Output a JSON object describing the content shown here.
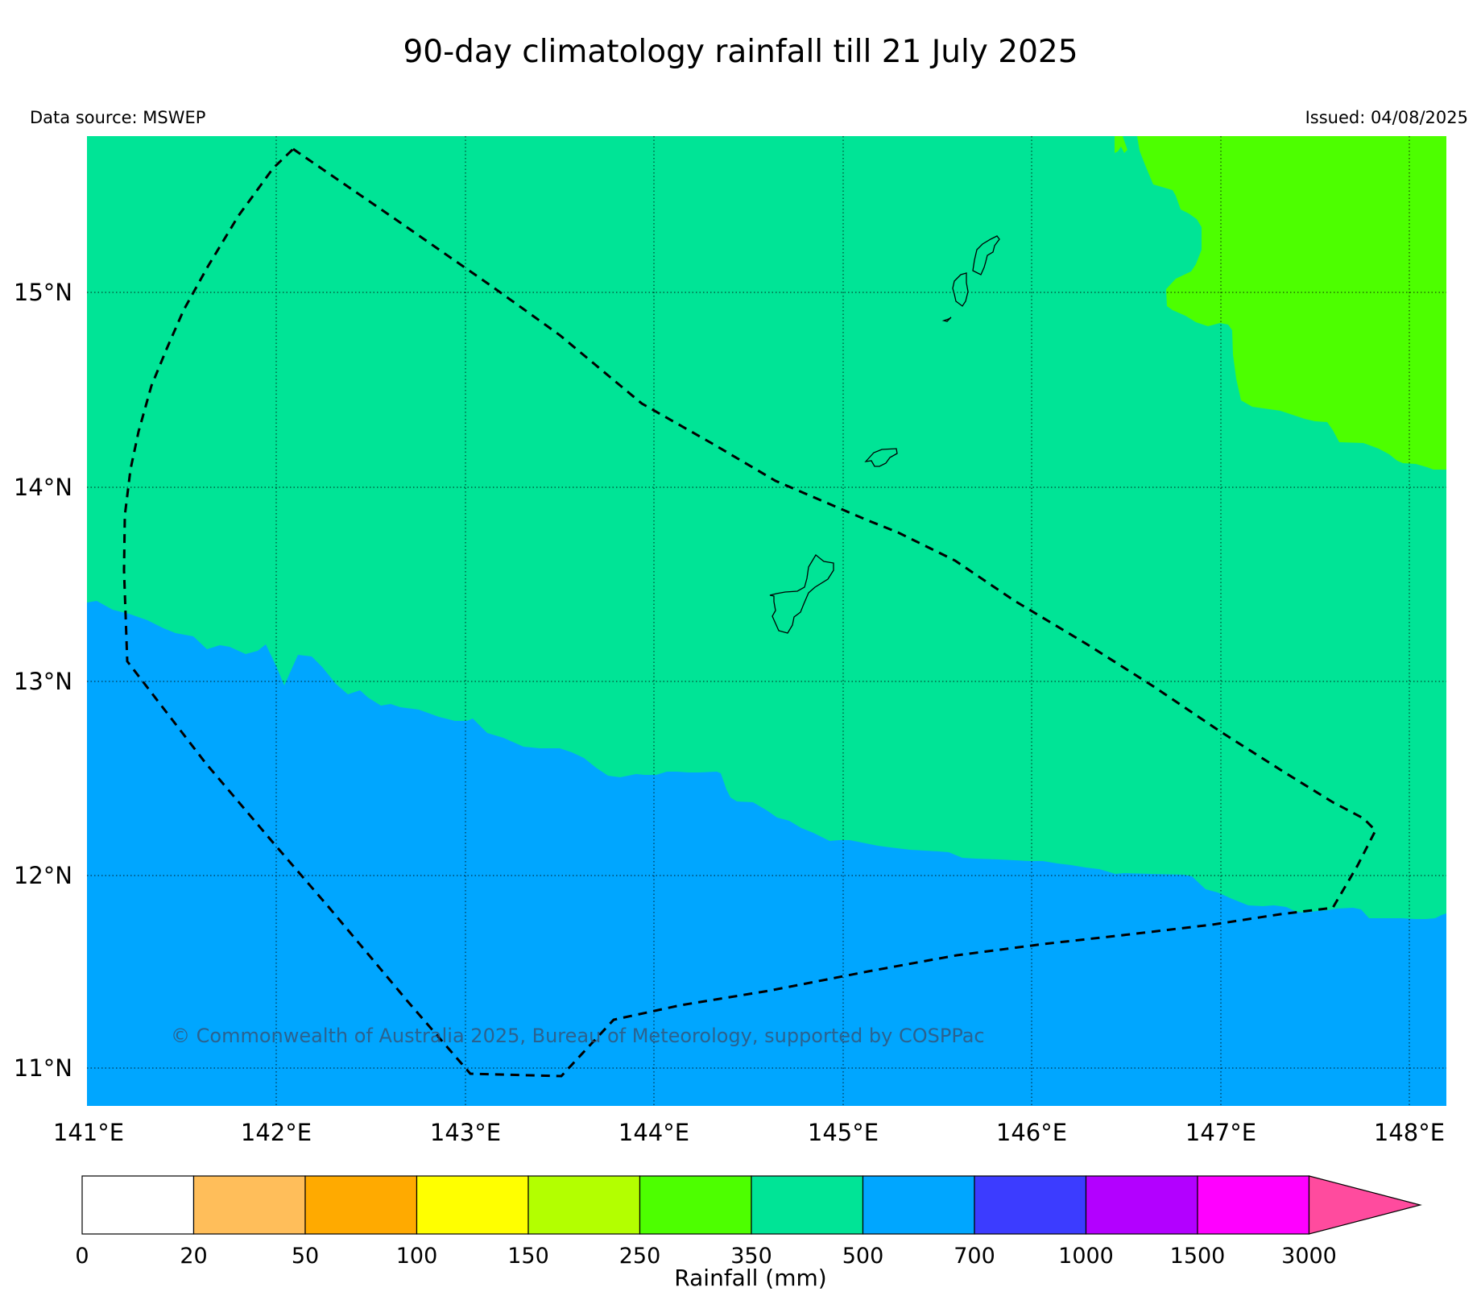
{
  "title": "90-day climatology rainfall till 21 July 2025",
  "data_source": "Data source: MSWEP",
  "issued": "Issued: 04/08/2025",
  "copyright": "© Commonwealth of Australia 2025, Bureau of Meteorology, supported by COSPPac",
  "map": {
    "lat_ticks": [
      "15°N",
      "14°N",
      "13°N",
      "12°N",
      "11°N"
    ],
    "lon_ticks": [
      "141°E",
      "142°E",
      "143°E",
      "144°E",
      "145°E",
      "146°E",
      "147°E",
      "148°E"
    ],
    "lat_values": [
      15,
      14,
      13,
      12,
      11
    ],
    "lon_values": [
      141,
      142,
      143,
      144,
      145,
      146,
      147,
      148
    ],
    "lon_range": [
      141,
      148.2
    ],
    "lat_range": [
      10.8,
      15.8
    ],
    "regions": [
      {
        "range": "350-500",
        "color": "#00e496"
      },
      {
        "range": "500-700",
        "color": "#00a6ff"
      },
      {
        "range": "250-350",
        "color": "#4dff00"
      }
    ],
    "grid": true,
    "eez_boundary": "dashed"
  },
  "colorbar": {
    "title": "Rainfall (mm)",
    "labels": [
      "0",
      "20",
      "50",
      "100",
      "150",
      "250",
      "350",
      "500",
      "700",
      "1000",
      "1500",
      "3000"
    ],
    "colors": [
      "#ffffff",
      "#ffbe5a",
      "#ffaa00",
      "#ffff00",
      "#b3ff00",
      "#4dff00",
      "#00e496",
      "#00a6ff",
      "#3c3cff",
      "#b300ff",
      "#ff00ff"
    ],
    "extend_color": "#ff4b9e"
  }
}
